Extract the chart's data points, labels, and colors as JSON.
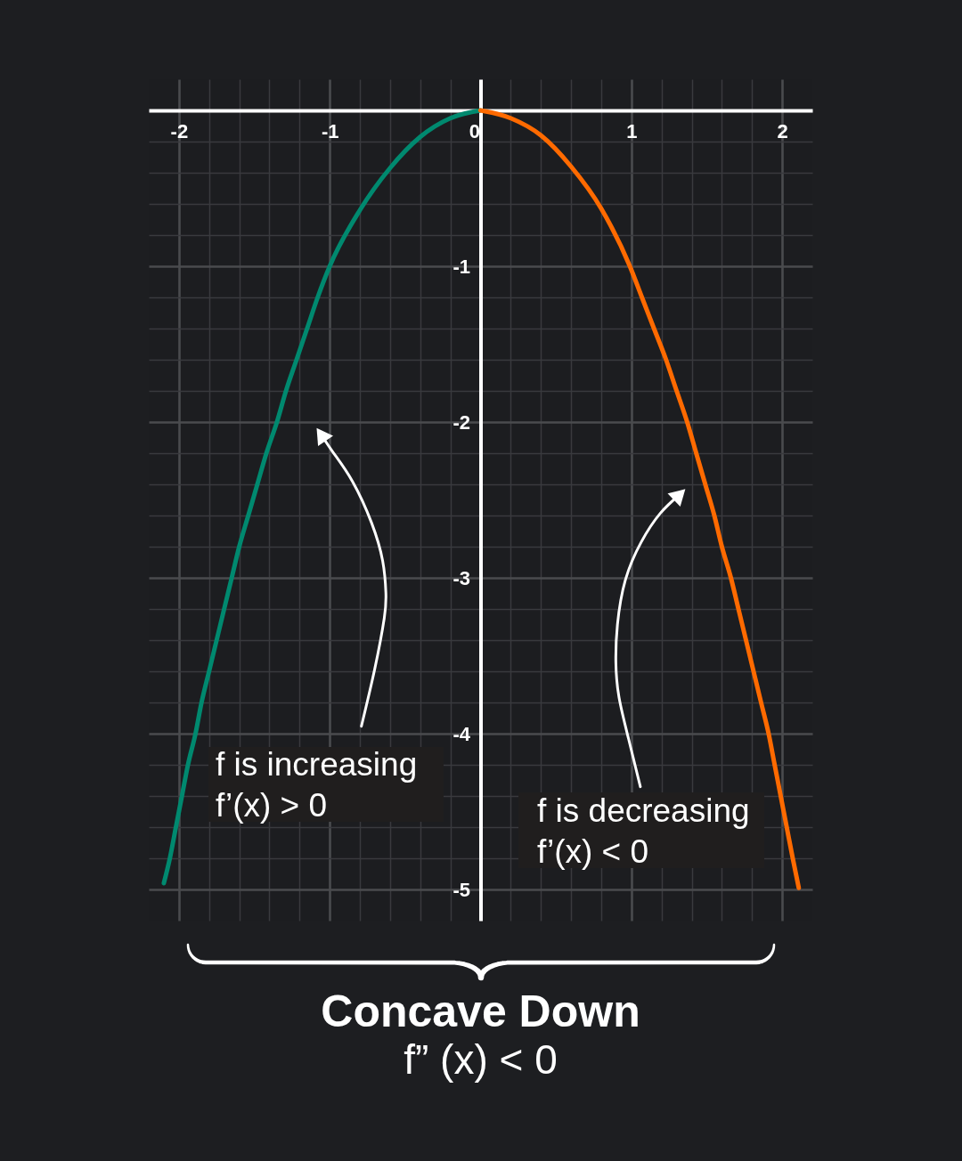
{
  "chart_data": {
    "type": "line",
    "title": "Concave Down",
    "subtitle": "f” (x) < 0",
    "annotations": [
      "f is increasing\nf’(x) > 0",
      "f is decreasing\nf’(x) < 0"
    ],
    "series": [
      {
        "color": "#00896f",
        "x": [
          -2.1,
          -2.06,
          -2.02,
          -1.98,
          -1.94,
          -1.89,
          -1.85,
          -1.8,
          -1.75,
          -1.7,
          -1.65,
          -1.6,
          -1.54,
          -1.48,
          -1.42,
          -1.35,
          -1.29,
          -1.22,
          -1.15,
          -1.08,
          -1.0,
          -0.8,
          -0.6,
          -0.4,
          -0.2,
          0
        ],
        "values": [
          -4.96,
          -4.8,
          -4.6,
          -4.4,
          -4.2,
          -4.0,
          -3.8,
          -3.6,
          -3.4,
          -3.2,
          -3.0,
          -2.8,
          -2.6,
          -2.4,
          -2.2,
          -2.0,
          -1.8,
          -1.6,
          -1.4,
          -1.2,
          -1.0,
          -0.64,
          -0.37,
          -0.17,
          -0.05,
          0
        ]
      },
      {
        "color": "#ff6a00",
        "x": [
          0,
          0.2,
          0.4,
          0.6,
          0.8,
          0.99,
          1.07,
          1.15,
          1.23,
          1.3,
          1.37,
          1.43,
          1.49,
          1.55,
          1.6,
          1.66,
          1.71,
          1.76,
          1.81,
          1.86,
          1.91,
          1.95,
          1.99,
          2.03,
          2.07,
          2.11
        ],
        "values": [
          0,
          -0.05,
          -0.16,
          -0.36,
          -0.63,
          -1.0,
          -1.2,
          -1.4,
          -1.6,
          -1.8,
          -2.0,
          -2.2,
          -2.4,
          -2.6,
          -2.8,
          -3.0,
          -3.2,
          -3.4,
          -3.6,
          -3.8,
          -4.0,
          -4.2,
          -4.4,
          -4.6,
          -4.8,
          -4.99
        ]
      }
    ],
    "xlim": [
      -2.2,
      2.2
    ],
    "ylim": [
      -5.2,
      0.2
    ],
    "xticks": [
      -2,
      {
        "value": -1.8,
        "label": null
      },
      {
        "value": -1.6,
        "label": null
      },
      {
        "value": -1.4,
        "label": null
      },
      {
        "value": -1.2,
        "label": null
      },
      -1,
      {
        "value": -0.8,
        "label": null
      },
      {
        "value": -0.6,
        "label": null
      },
      {
        "value": -0.4,
        "label": null
      },
      {
        "value": -0.2,
        "label": null
      },
      0,
      {
        "value": 0.2,
        "label": null
      },
      {
        "value": 0.4,
        "label": null
      },
      {
        "value": 0.6,
        "label": null
      },
      {
        "value": 0.8,
        "label": null
      },
      1,
      {
        "value": 1.2,
        "label": null
      },
      {
        "value": 1.4,
        "label": null
      },
      {
        "value": 1.6,
        "label": null
      },
      {
        "value": 1.8,
        "label": null
      },
      2
    ],
    "yticks": [
      {
        "value": -0.2,
        "label": null
      },
      {
        "value": -0.4,
        "label": null
      },
      {
        "value": -0.6,
        "label": null
      },
      {
        "value": -0.8,
        "label": null
      },
      -1,
      {
        "value": -1.2,
        "label": null
      },
      {
        "value": -1.4,
        "label": null
      },
      {
        "value": -1.6,
        "label": null
      },
      {
        "value": -1.8,
        "label": null
      },
      -2,
      {
        "value": -2.2,
        "label": null
      },
      {
        "value": -2.4,
        "label": null
      },
      {
        "value": -2.6,
        "label": null
      },
      {
        "value": -2.8,
        "label": null
      },
      -3,
      {
        "value": -3.2,
        "label": null
      },
      {
        "value": -3.4,
        "label": null
      },
      {
        "value": -3.6,
        "label": null
      },
      {
        "value": -3.8,
        "label": null
      },
      -4,
      {
        "value": -4.2,
        "label": null
      },
      {
        "value": -4.4,
        "label": null
      },
      {
        "value": -4.6,
        "label": null
      },
      {
        "value": -4.8,
        "label": null
      },
      -5
    ],
    "grid": true,
    "line_style": "solid"
  }
}
